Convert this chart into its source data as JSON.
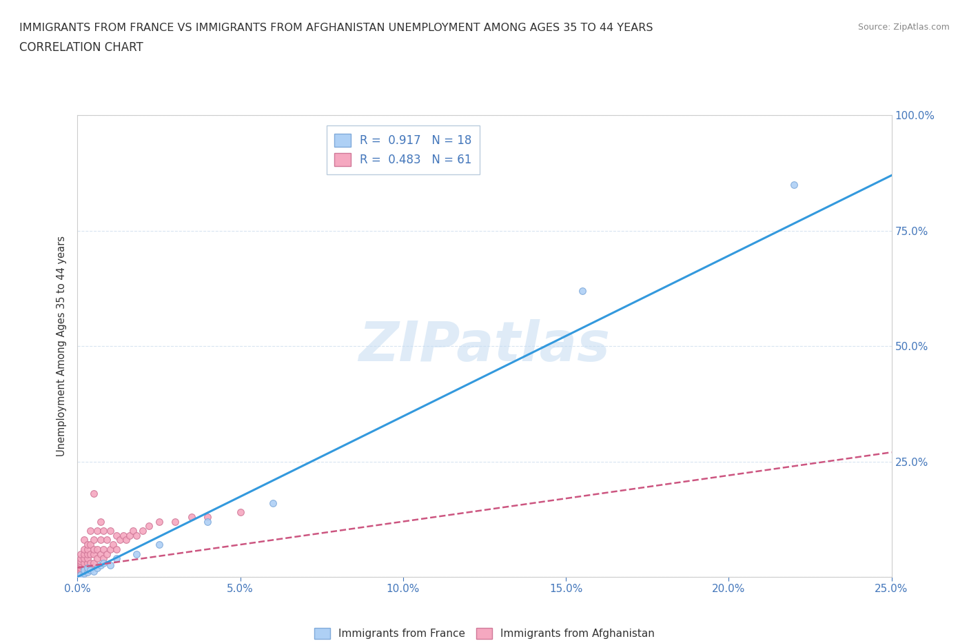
{
  "title_line1": "IMMIGRANTS FROM FRANCE VS IMMIGRANTS FROM AFGHANISTAN UNEMPLOYMENT AMONG AGES 35 TO 44 YEARS",
  "title_line2": "CORRELATION CHART",
  "source": "Source: ZipAtlas.com",
  "ylabel": "Unemployment Among Ages 35 to 44 years",
  "xlim": [
    0,
    0.25
  ],
  "ylim": [
    0,
    1.0
  ],
  "xticks": [
    0,
    0.05,
    0.1,
    0.15,
    0.2,
    0.25
  ],
  "yticks": [
    0,
    0.25,
    0.5,
    0.75,
    1.0
  ],
  "xtick_labels": [
    "0.0%",
    "5.0%",
    "10.0%",
    "15.0%",
    "20.0%",
    "25.0%"
  ],
  "ytick_labels_right": [
    "",
    "25.0%",
    "50.0%",
    "75.0%",
    "100.0%"
  ],
  "france_color": "#aed0f5",
  "france_edge_color": "#80aada",
  "afghanistan_color": "#f5a8c0",
  "afghanistan_edge_color": "#d07898",
  "france_R": 0.917,
  "france_N": 18,
  "afghanistan_R": 0.483,
  "afghanistan_N": 61,
  "france_line_color": "#3399dd",
  "afghanistan_line_color": "#cc5580",
  "afghanistan_line_style": "--",
  "watermark_text": "ZIPatlas",
  "legend_label_france": "Immigrants from France",
  "legend_label_afghanistan": "Immigrants from Afghanistan",
  "france_scatter_x": [
    0.001,
    0.002,
    0.002,
    0.003,
    0.003,
    0.004,
    0.005,
    0.006,
    0.007,
    0.008,
    0.01,
    0.012,
    0.018,
    0.025,
    0.04,
    0.06,
    0.155,
    0.22
  ],
  "france_scatter_y": [
    0.005,
    0.008,
    0.015,
    0.01,
    0.02,
    0.015,
    0.012,
    0.02,
    0.025,
    0.03,
    0.025,
    0.04,
    0.05,
    0.07,
    0.12,
    0.16,
    0.62,
    0.85
  ],
  "afghanistan_scatter_x": [
    0.001,
    0.001,
    0.001,
    0.001,
    0.001,
    0.001,
    0.001,
    0.001,
    0.001,
    0.002,
    0.002,
    0.002,
    0.002,
    0.002,
    0.002,
    0.002,
    0.003,
    0.003,
    0.003,
    0.003,
    0.003,
    0.003,
    0.004,
    0.004,
    0.004,
    0.004,
    0.004,
    0.005,
    0.005,
    0.005,
    0.005,
    0.005,
    0.006,
    0.006,
    0.006,
    0.007,
    0.007,
    0.007,
    0.008,
    0.008,
    0.008,
    0.009,
    0.009,
    0.01,
    0.01,
    0.011,
    0.012,
    0.012,
    0.013,
    0.014,
    0.015,
    0.016,
    0.017,
    0.018,
    0.02,
    0.022,
    0.025,
    0.03,
    0.035,
    0.04,
    0.05
  ],
  "afghanistan_scatter_y": [
    0.005,
    0.01,
    0.015,
    0.02,
    0.025,
    0.03,
    0.035,
    0.04,
    0.05,
    0.01,
    0.02,
    0.03,
    0.04,
    0.05,
    0.06,
    0.08,
    0.02,
    0.03,
    0.04,
    0.05,
    0.06,
    0.07,
    0.02,
    0.03,
    0.05,
    0.07,
    0.1,
    0.03,
    0.05,
    0.06,
    0.08,
    0.18,
    0.04,
    0.06,
    0.1,
    0.05,
    0.08,
    0.12,
    0.04,
    0.06,
    0.1,
    0.05,
    0.08,
    0.06,
    0.1,
    0.07,
    0.06,
    0.09,
    0.08,
    0.09,
    0.08,
    0.09,
    0.1,
    0.09,
    0.1,
    0.11,
    0.12,
    0.12,
    0.13,
    0.13,
    0.14
  ],
  "france_line_x": [
    0.0,
    0.25
  ],
  "france_line_y": [
    0.0,
    0.87
  ],
  "afghanistan_line_x": [
    0.0,
    0.25
  ],
  "afghanistan_line_y": [
    0.02,
    0.27
  ],
  "background_color": "#ffffff",
  "grid_color": "#d8e4f0",
  "title_color": "#333333",
  "axis_color": "#4477bb",
  "marker_size": 7,
  "title_fontsize": 11.5,
  "subtitle_fontsize": 12
}
